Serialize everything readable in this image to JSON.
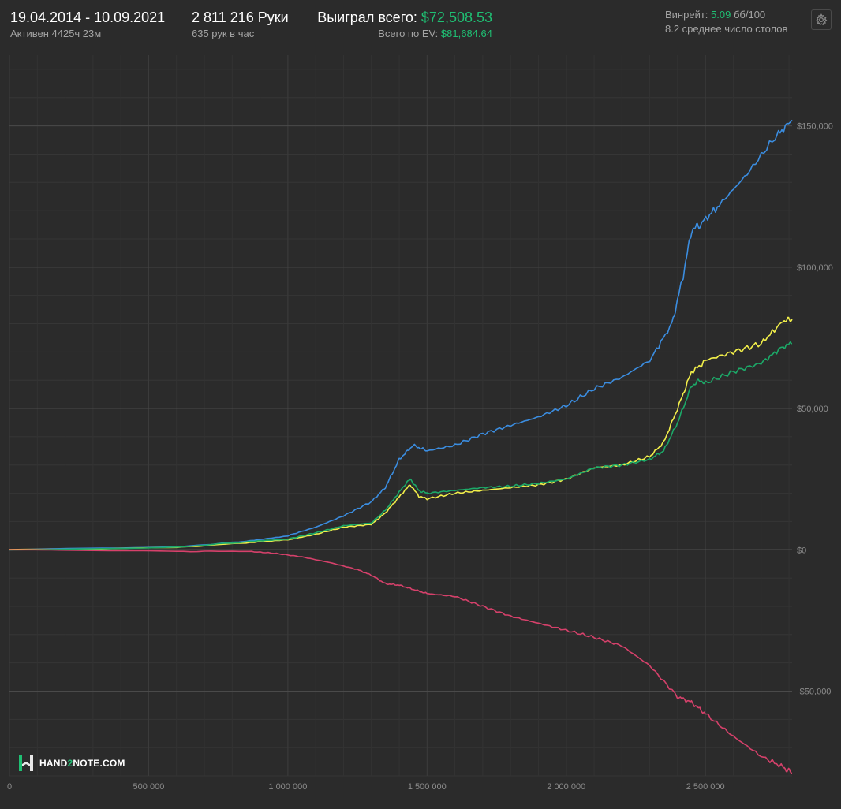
{
  "header": {
    "date_range": "19.04.2014 - 10.09.2021",
    "active_time": "Активен 4425ч 23м",
    "hands": "2 811 216 Руки",
    "hands_per_hour": "635 рук в час",
    "won_label": "Выиграл всего:",
    "won_value": "$72,508.53",
    "ev_label": "Всего по EV:",
    "ev_value": "$81,684.64",
    "winrate_label": "Винрейт:",
    "winrate_value": "5.09",
    "winrate_unit": "бб/100",
    "avg_tables": "8.2 среднее число столов"
  },
  "settings_icon": "gear-icon",
  "logo": {
    "prefix": "HAND",
    "two": "2",
    "suffix": "NOTE.COM"
  },
  "colors": {
    "background": "#2b2b2b",
    "blue": "#3b8de0",
    "yellow": "#f2ef4a",
    "green": "#1ca968",
    "red": "#d6416b",
    "accent": "#1fbf73"
  },
  "chart_data": {
    "type": "line",
    "xlim": [
      0,
      2811216
    ],
    "ylim": [
      -80000,
      175000
    ],
    "x_ticks": [
      0,
      500000,
      1000000,
      1500000,
      2000000,
      2500000
    ],
    "x_tick_labels": [
      "0",
      "500 000",
      "1 000 000",
      "1 500 000",
      "2 000 000",
      "2 500 000"
    ],
    "y_ticks": [
      150000,
      100000,
      50000,
      0,
      -50000
    ],
    "y_tick_labels": [
      "$150,000",
      "$100,000",
      "$50,000",
      "$0",
      "-$50,000"
    ],
    "series": [
      {
        "color": "#3b8de0",
        "x": [
          0,
          300000,
          600000,
          850000,
          1000000,
          1100000,
          1200000,
          1300000,
          1350000,
          1400000,
          1450000,
          1500000,
          1600000,
          1700000,
          1800000,
          1900000,
          2000000,
          2100000,
          2200000,
          2300000,
          2380000,
          2420000,
          2450000,
          2480000,
          2550000,
          2650000,
          2750000,
          2811216
        ],
        "y": [
          0,
          500,
          1000,
          3000,
          5000,
          8000,
          12000,
          17000,
          22000,
          32000,
          37000,
          35000,
          37000,
          41000,
          44000,
          47000,
          51000,
          57000,
          61000,
          67000,
          80000,
          97000,
          113000,
          115000,
          122000,
          133000,
          146000,
          152000
        ]
      },
      {
        "color": "#f2ef4a",
        "x": [
          0,
          300000,
          600000,
          850000,
          1000000,
          1100000,
          1200000,
          1300000,
          1350000,
          1420000,
          1440000,
          1470000,
          1500000,
          1600000,
          1700000,
          1800000,
          1900000,
          2000000,
          2100000,
          2200000,
          2300000,
          2350000,
          2400000,
          2450000,
          2480000,
          2500000,
          2600000,
          2700000,
          2780000,
          2811216
        ],
        "y": [
          0,
          200,
          800,
          2500,
          3500,
          5500,
          8000,
          9000,
          13000,
          21000,
          23000,
          19000,
          18000,
          20000,
          21000,
          22000,
          23000,
          25000,
          29000,
          30000,
          33000,
          38000,
          50000,
          63000,
          65000,
          67000,
          70000,
          73000,
          81000,
          81500
        ]
      },
      {
        "color": "#1ca968",
        "x": [
          0,
          300000,
          600000,
          850000,
          1000000,
          1100000,
          1200000,
          1300000,
          1350000,
          1420000,
          1440000,
          1470000,
          1500000,
          1600000,
          1700000,
          1800000,
          1900000,
          2000000,
          2100000,
          2200000,
          2300000,
          2350000,
          2400000,
          2450000,
          2480000,
          2500000,
          2600000,
          2700000,
          2780000,
          2811216
        ],
        "y": [
          0,
          250,
          900,
          2800,
          3800,
          6000,
          8500,
          9500,
          14000,
          23000,
          25000,
          21000,
          20000,
          21000,
          22000,
          22500,
          23500,
          25000,
          29000,
          30000,
          32000,
          35000,
          45000,
          58000,
          60000,
          59000,
          63000,
          66000,
          72000,
          73000
        ]
      },
      {
        "color": "#d6416b",
        "x": [
          0,
          300000,
          600000,
          850000,
          950000,
          1050000,
          1150000,
          1250000,
          1300000,
          1350000,
          1400000,
          1450000,
          1500000,
          1600000,
          1700000,
          1800000,
          1900000,
          2000000,
          2100000,
          2200000,
          2300000,
          2400000,
          2450000,
          2500000,
          2600000,
          2700000,
          2780000,
          2811216
        ],
        "y": [
          0,
          -200,
          -600,
          -500,
          -1200,
          -2500,
          -4500,
          -7000,
          -9000,
          -12000,
          -12500,
          -14000,
          -15500,
          -16500,
          -20000,
          -23500,
          -26000,
          -28500,
          -31000,
          -34000,
          -41000,
          -52000,
          -54000,
          -58000,
          -66000,
          -73000,
          -77000,
          -79000
        ]
      }
    ]
  }
}
